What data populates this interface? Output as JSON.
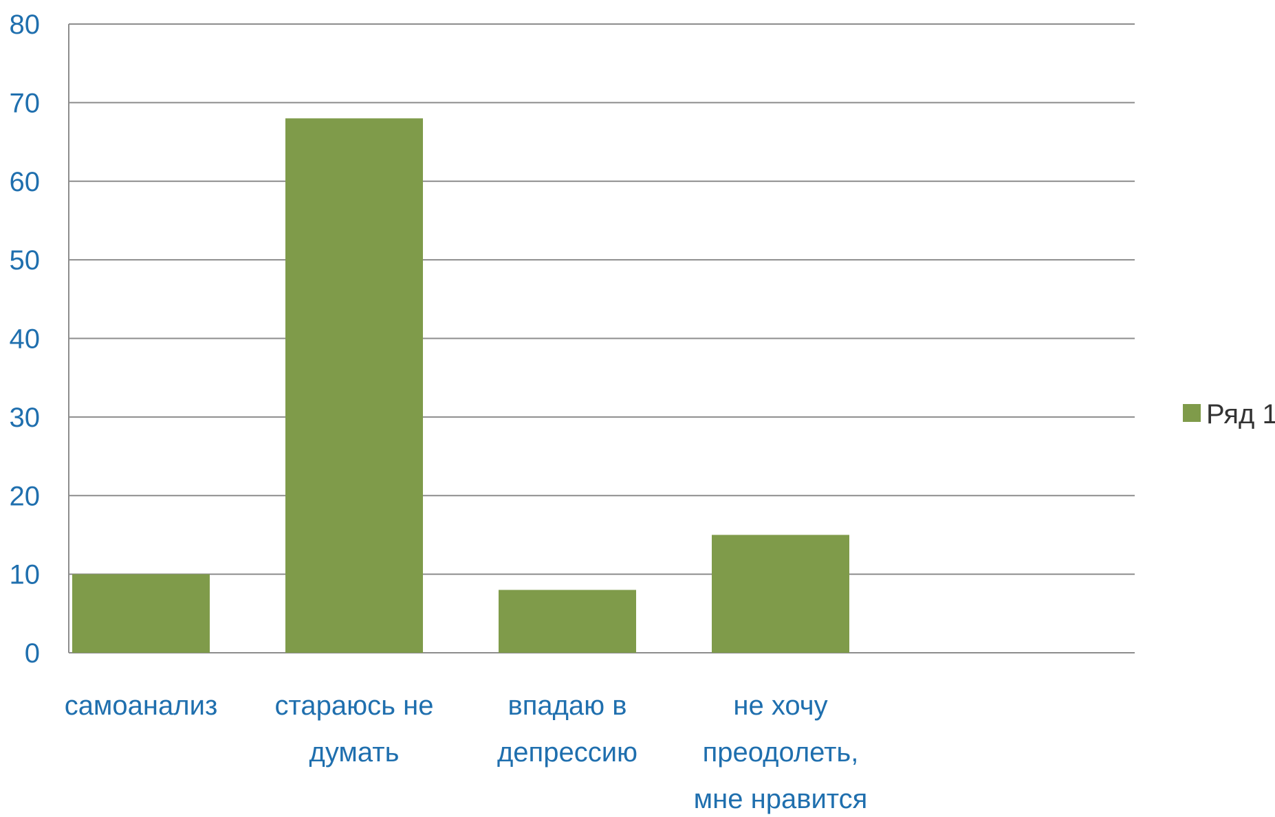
{
  "chart_data": {
    "type": "bar",
    "categories": [
      [
        "самоанализ"
      ],
      [
        "стараюсь не",
        "думать"
      ],
      [
        "впадаю в",
        "депрессию"
      ],
      [
        "не хочу",
        "преодолеть,",
        "мне нравится"
      ]
    ],
    "series": [
      {
        "name": "Ряд 1",
        "values": [
          10,
          68,
          8,
          15
        ],
        "color": "#7f9b4a"
      }
    ],
    "ylim": [
      0,
      80
    ],
    "yticks": [
      0,
      10,
      20,
      30,
      40,
      50,
      60,
      70,
      80
    ],
    "grid": true,
    "legend_position": "right",
    "colors": {
      "axis_text": "#1f6fae",
      "gridline": "#8c8c8c",
      "legend_text": "#333333"
    }
  }
}
